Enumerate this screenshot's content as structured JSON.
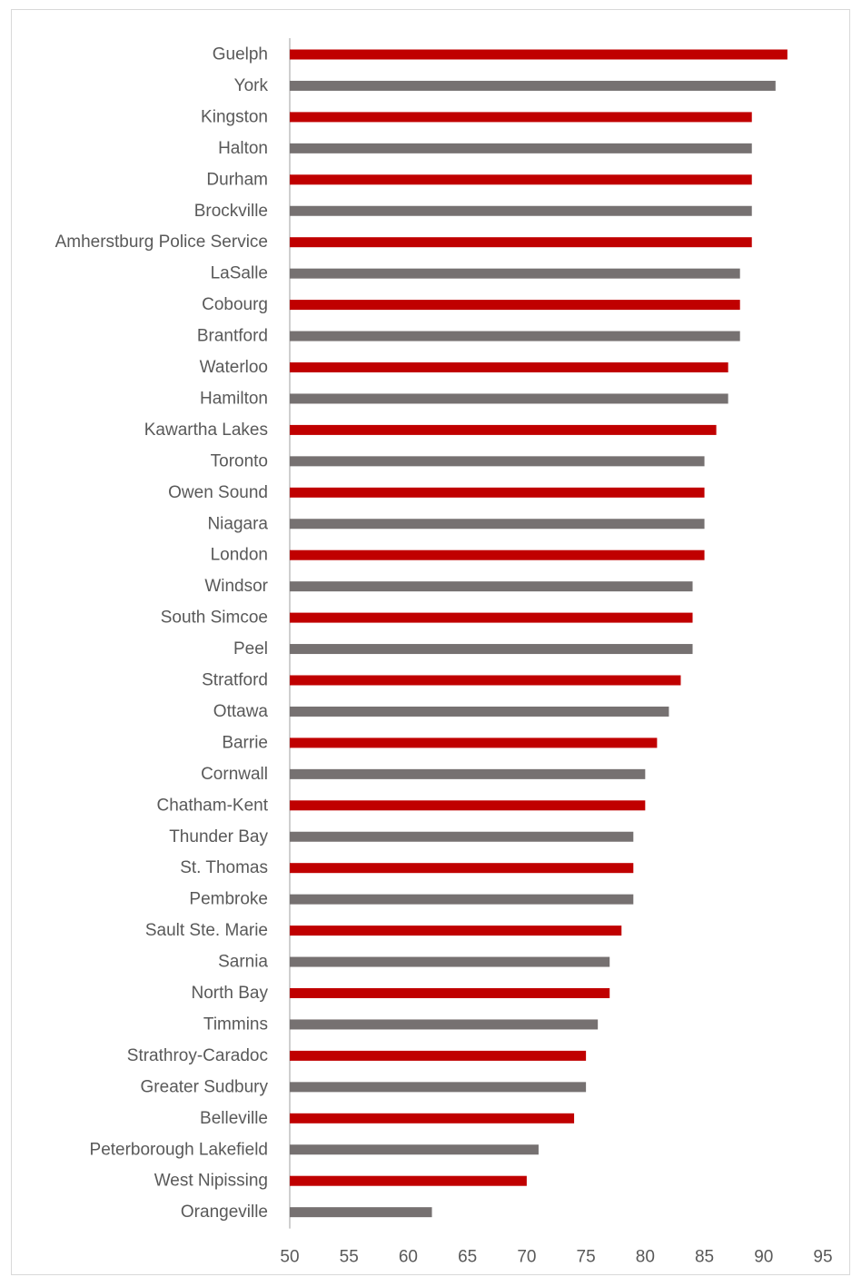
{
  "chart_data": {
    "type": "bar",
    "orientation": "horizontal",
    "categories": [
      "Guelph",
      "York",
      "Kingston",
      "Halton",
      "Durham",
      "Brockville",
      "Amherstburg Police Service",
      "LaSalle",
      "Cobourg",
      "Brantford",
      "Waterloo",
      "Hamilton",
      "Kawartha Lakes",
      "Toronto",
      "Owen Sound",
      "Niagara",
      "London",
      "Windsor",
      "South Simcoe",
      "Peel",
      "Stratford",
      "Ottawa",
      "Barrie",
      "Cornwall",
      "Chatham-Kent",
      "Thunder Bay",
      "St. Thomas",
      "Pembroke",
      "Sault Ste. Marie",
      "Sarnia",
      "North Bay",
      "Timmins",
      "Strathroy-Caradoc",
      "Greater Sudbury",
      "Belleville",
      "Peterborough Lakefield",
      "West Nipissing",
      "Orangeville"
    ],
    "values": [
      92,
      91,
      89,
      89,
      89,
      89,
      89,
      88,
      88,
      88,
      87,
      87,
      86,
      85,
      85,
      85,
      85,
      84,
      84,
      84,
      83,
      82,
      81,
      80,
      80,
      79,
      79,
      79,
      78,
      77,
      77,
      76,
      75,
      75,
      74,
      71,
      70,
      62
    ],
    "bar_colors": [
      "#c00000",
      "#767171"
    ],
    "xlim": [
      50,
      95
    ],
    "xticks": [
      "50",
      "55",
      "60",
      "65",
      "70",
      "75",
      "80",
      "85",
      "90",
      "95"
    ],
    "title": "",
    "xlabel": "",
    "ylabel": "",
    "grid": false,
    "legend": false
  }
}
